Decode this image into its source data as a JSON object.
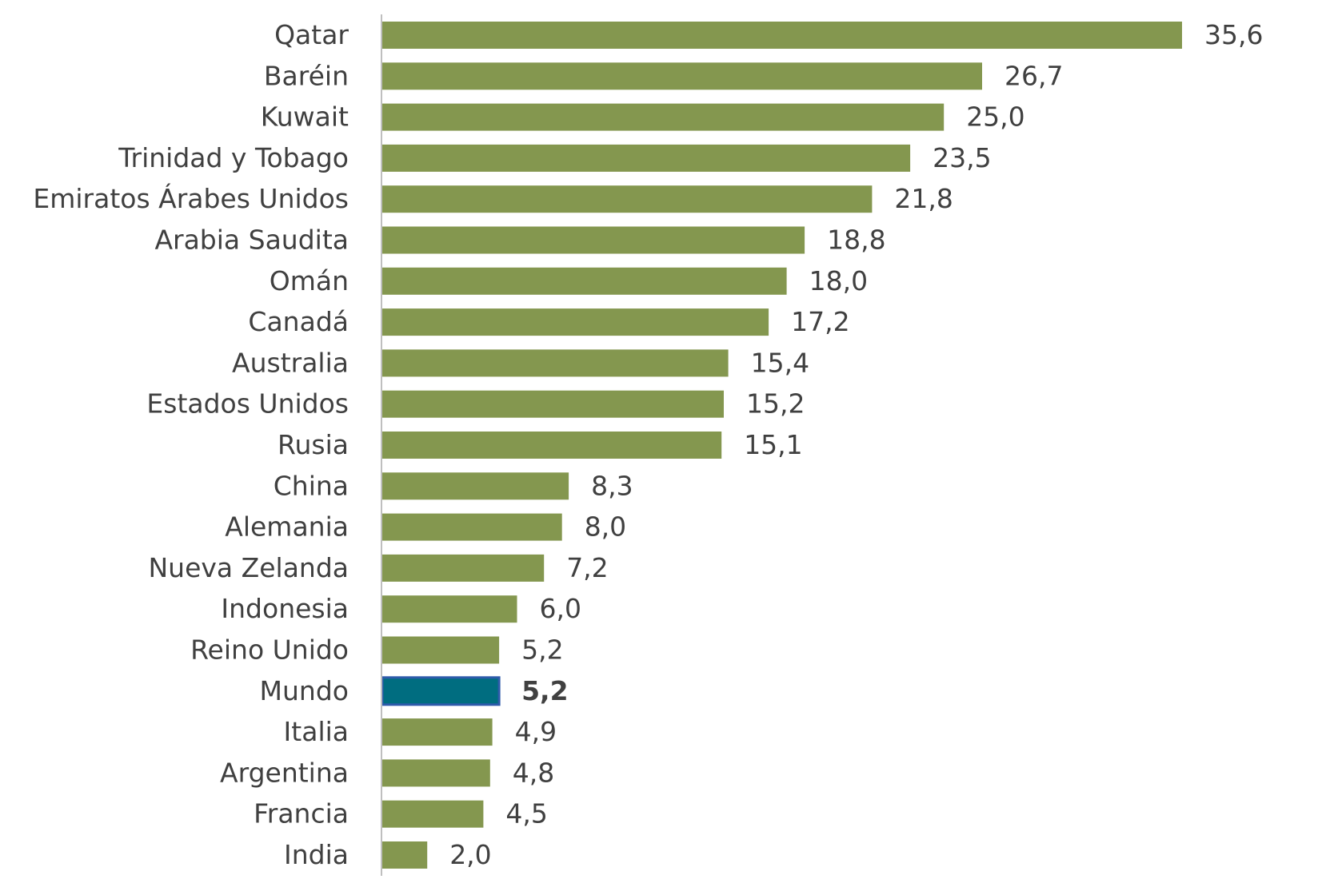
{
  "chart_data": {
    "type": "bar",
    "orientation": "horizontal",
    "categories": [
      "Qatar",
      "Baréin",
      "Kuwait",
      "Trinidad y Tobago",
      "Emiratos Árabes Unidos",
      "Arabia Saudita",
      "Omán",
      "Canadá",
      "Australia",
      "Estados Unidos",
      "Rusia",
      "China",
      "Alemania",
      "Nueva Zelanda",
      "Indonesia",
      "Reino Unido",
      "Mundo",
      "Italia",
      "Argentina",
      "Francia",
      "India"
    ],
    "values": [
      35.6,
      26.7,
      25.0,
      23.5,
      21.8,
      18.8,
      18.0,
      17.2,
      15.4,
      15.2,
      15.1,
      8.3,
      8.0,
      7.2,
      6.0,
      5.2,
      5.2,
      4.9,
      4.8,
      4.5,
      2.0
    ],
    "value_labels": [
      "35,6",
      "26,7",
      "25,0",
      "23,5",
      "21,8",
      "18,8",
      "18,0",
      "17,2",
      "15,4",
      "15,2",
      "15,1",
      "8,3",
      "8,0",
      "7,2",
      "6,0",
      "5,2",
      "5,2",
      "4,9",
      "4,8",
      "4,5",
      "2,0"
    ],
    "highlight_category": "Mundo",
    "bar_color": "#84974F",
    "highlight_color": "#006D80",
    "highlight_border_color": "#2E5BAA",
    "axis_color": "#BFBFBF",
    "xlim": [
      0,
      35.6
    ],
    "title": "",
    "xlabel": "",
    "ylabel": "",
    "grid": false,
    "legend": "none"
  }
}
